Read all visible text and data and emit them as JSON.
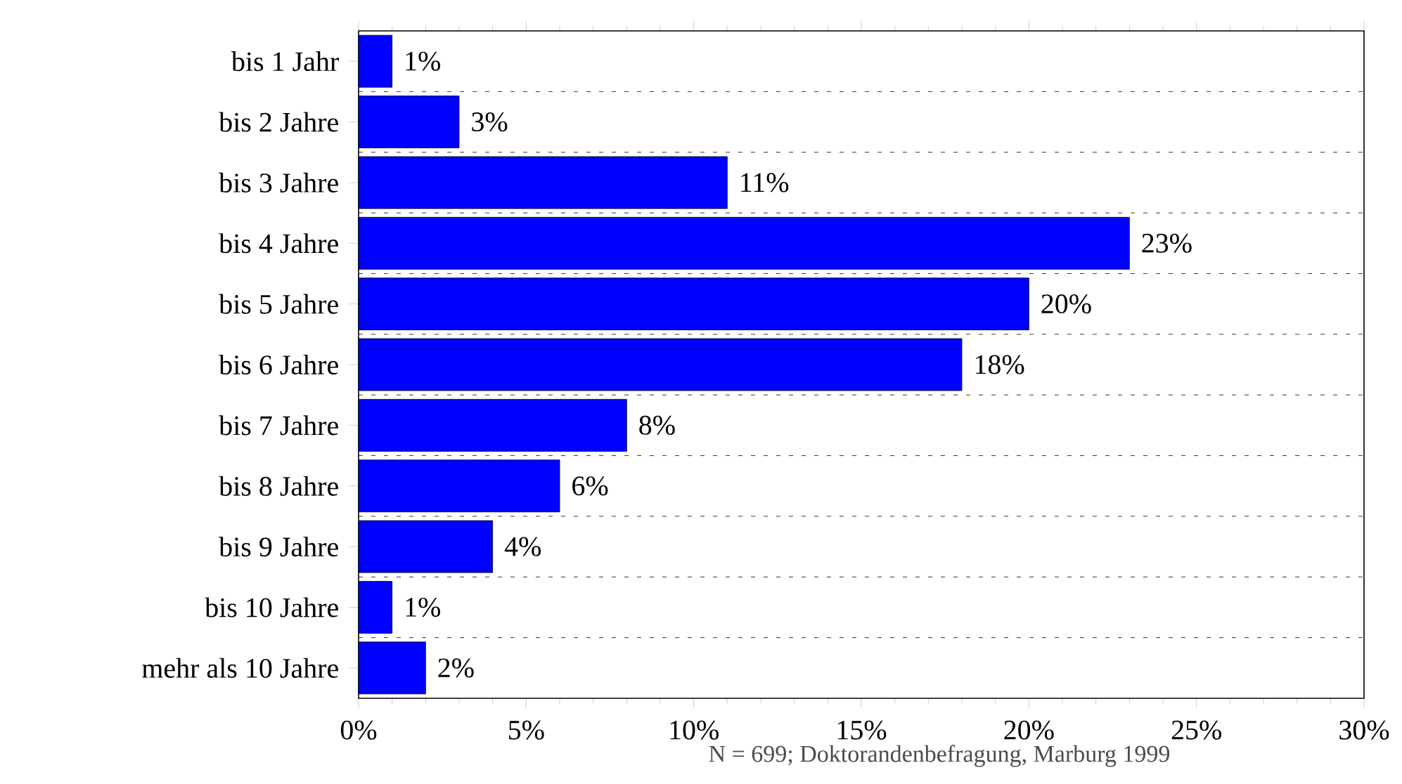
{
  "chart_data": {
    "type": "bar",
    "orientation": "horizontal",
    "categories": [
      "bis 1 Jahr",
      "bis 2 Jahre",
      "bis 3 Jahre",
      "bis 4 Jahre",
      "bis 5 Jahre",
      "bis 6 Jahre",
      "bis 7 Jahre",
      "bis 8 Jahre",
      "bis 9 Jahre",
      "bis 10 Jahre",
      "mehr als 10 Jahre"
    ],
    "values": [
      1,
      3,
      11,
      23,
      20,
      18,
      8,
      6,
      4,
      1,
      2
    ],
    "value_labels": [
      "1%",
      "3%",
      "11%",
      "23%",
      "20%",
      "18%",
      "8%",
      "6%",
      "4%",
      "1%",
      "2%"
    ],
    "color": "#0000ff",
    "xlim": [
      0,
      30
    ],
    "xticks": [
      {
        "value": 0,
        "label": "0%"
      },
      {
        "value": 5,
        "label": "5%"
      },
      {
        "value": 10,
        "label": "10%"
      },
      {
        "value": 15,
        "label": "15%"
      },
      {
        "value": 20,
        "label": "20%"
      },
      {
        "value": 25,
        "label": "25%"
      },
      {
        "value": 30,
        "label": "30%"
      }
    ],
    "grid": "y",
    "annotations": [
      "N = 699; Doktorandenbefragung, Marburg 1999"
    ]
  }
}
